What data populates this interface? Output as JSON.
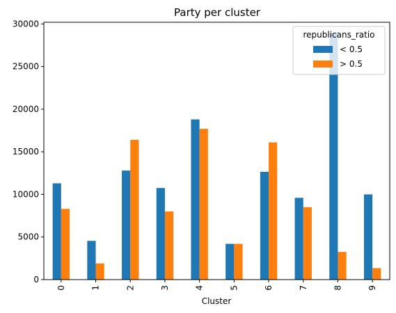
{
  "chart_data": {
    "type": "bar",
    "title": "Party per cluster",
    "xlabel": "Cluster",
    "ylabel": "",
    "categories": [
      "0",
      "1",
      "2",
      "3",
      "4",
      "5",
      "6",
      "7",
      "8",
      "9"
    ],
    "series": [
      {
        "name": "< 0.5",
        "color": "#1f77b4",
        "values": [
          11300,
          4550,
          12800,
          10750,
          18800,
          4200,
          12650,
          9600,
          29000,
          10000
        ]
      },
      {
        "name": "> 0.5",
        "color": "#ff7f0e",
        "values": [
          8300,
          1900,
          16400,
          8000,
          17700,
          4200,
          16100,
          8500,
          3250,
          1350
        ]
      }
    ],
    "ylim": [
      0,
      30200
    ],
    "yticks": [
      0,
      5000,
      10000,
      15000,
      20000,
      25000,
      30000
    ],
    "legend": {
      "title": "republicans_ratio",
      "position": "top-right"
    },
    "grid": false
  }
}
